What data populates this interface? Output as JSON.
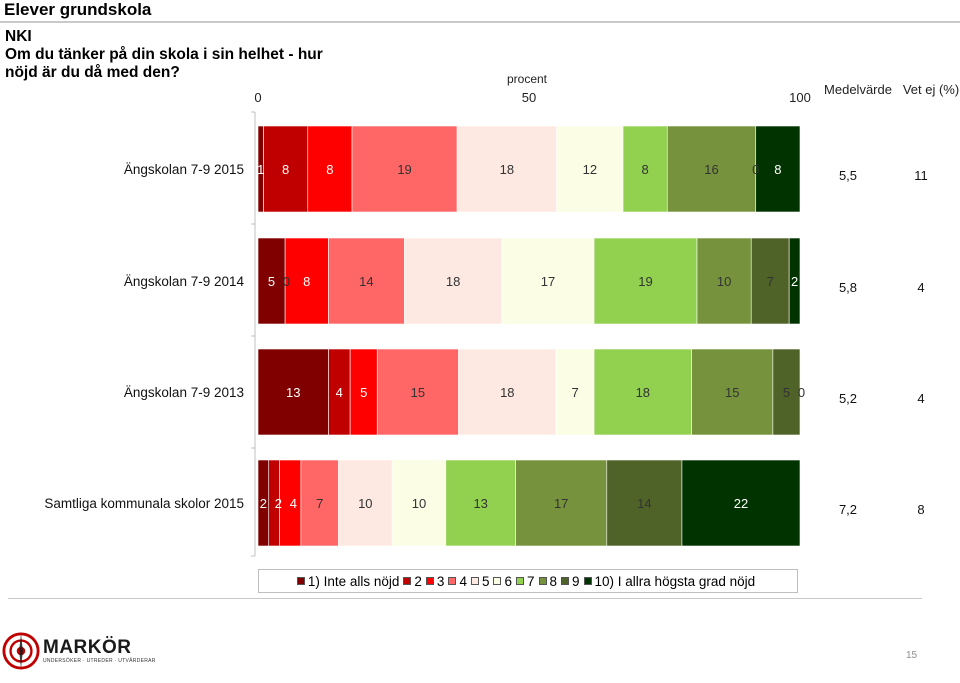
{
  "slide": {
    "title": "Elever grundskola",
    "question_lines": [
      "NKI",
      "Om du tänker på din skola i sin helhet - hur",
      "nöjd är du då med den?"
    ],
    "page_number": "15"
  },
  "logo": {
    "name": "MARKÖR",
    "tagline": "UNDERSÖKER · UTREDER · UTVÄRDERAR"
  },
  "chart_data": {
    "type": "bar",
    "orientation": "horizontal",
    "stacked": true,
    "xlabel": "procent",
    "xticks": [
      "0",
      "50",
      "100"
    ],
    "xlim": [
      0,
      100
    ],
    "column_headers": {
      "mean": "Medelvärde",
      "dont_know": "Vet ej (%)"
    },
    "categories": [
      "Ängskolan 7-9 2015",
      "Ängskolan 7-9 2014",
      "Ängskolan 7-9 2013",
      "Samtliga kommunala skolor 2015"
    ],
    "series": [
      {
        "name": "1) Inte alls nöjd",
        "color": "#800000",
        "values": [
          1,
          5,
          13,
          2
        ]
      },
      {
        "name": "2",
        "color": "#c00000",
        "values": [
          8,
          0,
          4,
          2
        ]
      },
      {
        "name": "3",
        "color": "#ff0000",
        "values": [
          8,
          8,
          5,
          4
        ]
      },
      {
        "name": "4",
        "color": "#ff6666",
        "values": [
          19,
          14,
          15,
          7
        ]
      },
      {
        "name": "5",
        "color": "#fde9e1",
        "values": [
          18,
          18,
          18,
          10
        ]
      },
      {
        "name": "6",
        "color": "#fbfde5",
        "values": [
          12,
          17,
          7,
          10
        ]
      },
      {
        "name": "7",
        "color": "#92d050",
        "values": [
          8,
          19,
          18,
          13
        ]
      },
      {
        "name": "8",
        "color": "#76923c",
        "values": [
          16,
          10,
          15,
          17
        ]
      },
      {
        "name": "9",
        "color": "#4f6228",
        "values": [
          0,
          7,
          5,
          14
        ]
      },
      {
        "name": "10) I allra högsta grad nöjd",
        "color": "#003300",
        "values": [
          8,
          2,
          0,
          22
        ]
      }
    ],
    "value_labels": [
      [
        "1",
        "8",
        "8",
        "19",
        "18",
        "12",
        "8",
        "16",
        "0",
        "8"
      ],
      [
        "5",
        "0",
        "8",
        "14",
        "18",
        "17",
        "19",
        "10",
        "7",
        "2"
      ],
      [
        "13",
        "4",
        "5",
        "15",
        "18",
        "7",
        "18",
        "15",
        "5",
        "0"
      ],
      [
        "2",
        "2",
        "4",
        "7",
        "10",
        "10",
        "13",
        "17",
        "14",
        "22"
      ]
    ],
    "means": [
      "5,5",
      "5,8",
      "5,2",
      "7,2"
    ],
    "dont_know": [
      "11",
      "4",
      "4",
      "8"
    ],
    "legend_position": "bottom"
  }
}
